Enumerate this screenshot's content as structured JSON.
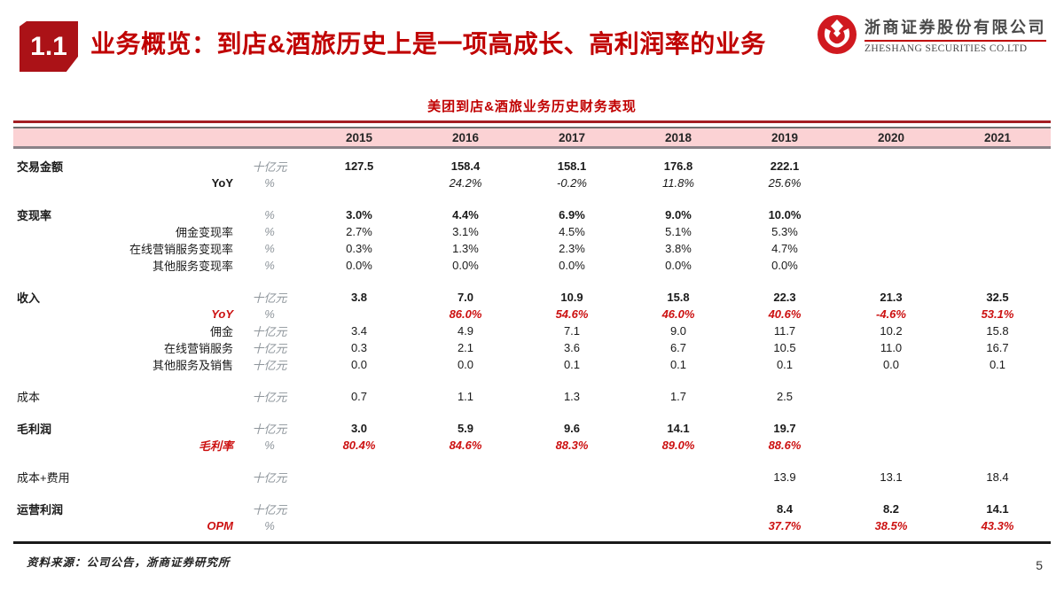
{
  "header": {
    "section_number": "1.1",
    "title": "业务概览：到店&酒旅历史上是一项高成长、高利润率的业务",
    "logo": {
      "company_cn": "浙商证券股份有限公司",
      "company_en": "ZHESHANG SECURITIES CO.LTD",
      "icon": "zheshang-knot-icon"
    }
  },
  "table": {
    "title": "美团到店&酒旅业务历史财务表现",
    "years": [
      "2015",
      "2016",
      "2017",
      "2018",
      "2019",
      "2020",
      "2021"
    ],
    "rows": [
      {
        "label": "交易金额",
        "label_class": "main",
        "unit": "十亿元",
        "value_class": "v-bold",
        "values": [
          "127.5",
          "158.4",
          "158.1",
          "176.8",
          "222.1",
          "",
          ""
        ]
      },
      {
        "label": "YoY",
        "label_class": "sub-bold",
        "unit": "%",
        "value_class": "v-italic",
        "values": [
          "",
          "24.2%",
          "-0.2%",
          "11.8%",
          "25.6%",
          "",
          ""
        ]
      },
      {
        "type": "spacer"
      },
      {
        "label": "变现率",
        "label_class": "main",
        "unit": "%",
        "value_class": "v-bold",
        "values": [
          "3.0%",
          "4.4%",
          "6.9%",
          "9.0%",
          "10.0%",
          "",
          ""
        ]
      },
      {
        "label": "佣金变现率",
        "label_class": "sub",
        "unit": "%",
        "value_class": "",
        "values": [
          "2.7%",
          "3.1%",
          "4.5%",
          "5.1%",
          "5.3%",
          "",
          ""
        ]
      },
      {
        "label": "在线营销服务变现率",
        "label_class": "sub",
        "unit": "%",
        "value_class": "",
        "values": [
          "0.3%",
          "1.3%",
          "2.3%",
          "3.8%",
          "4.7%",
          "",
          ""
        ]
      },
      {
        "label": "其他服务变现率",
        "label_class": "sub",
        "unit": "%",
        "value_class": "",
        "values": [
          "0.0%",
          "0.0%",
          "0.0%",
          "0.0%",
          "0.0%",
          "",
          ""
        ]
      },
      {
        "type": "spacer"
      },
      {
        "label": "收入",
        "label_class": "main",
        "unit": "十亿元",
        "value_class": "v-bold",
        "values": [
          "3.8",
          "7.0",
          "10.9",
          "15.8",
          "22.3",
          "21.3",
          "32.5"
        ]
      },
      {
        "label": "YoY",
        "label_class": "sub-red",
        "unit": "%",
        "value_class": "v-red",
        "values": [
          "",
          "86.0%",
          "54.6%",
          "46.0%",
          "40.6%",
          "-4.6%",
          "53.1%"
        ]
      },
      {
        "label": "佣金",
        "label_class": "sub",
        "unit": "十亿元",
        "value_class": "",
        "values": [
          "3.4",
          "4.9",
          "7.1",
          "9.0",
          "11.7",
          "10.2",
          "15.8"
        ]
      },
      {
        "label": "在线营销服务",
        "label_class": "sub",
        "unit": "十亿元",
        "value_class": "",
        "values": [
          "0.3",
          "2.1",
          "3.6",
          "6.7",
          "10.5",
          "11.0",
          "16.7"
        ]
      },
      {
        "label": "其他服务及销售",
        "label_class": "sub",
        "unit": "十亿元",
        "value_class": "",
        "values": [
          "0.0",
          "0.0",
          "0.1",
          "0.1",
          "0.1",
          "0.0",
          "0.1"
        ]
      },
      {
        "type": "spacer"
      },
      {
        "label": "成本",
        "label_class": "plain",
        "unit": "十亿元",
        "value_class": "",
        "values": [
          "0.7",
          "1.1",
          "1.3",
          "1.7",
          "2.5",
          "",
          ""
        ]
      },
      {
        "type": "spacer"
      },
      {
        "label": "毛利润",
        "label_class": "main",
        "unit": "十亿元",
        "value_class": "v-bold",
        "values": [
          "3.0",
          "5.9",
          "9.6",
          "14.1",
          "19.7",
          "",
          ""
        ]
      },
      {
        "label": "毛利率",
        "label_class": "sub-red",
        "unit": "%",
        "value_class": "v-red",
        "values": [
          "80.4%",
          "84.6%",
          "88.3%",
          "89.0%",
          "88.6%",
          "",
          ""
        ]
      },
      {
        "type": "spacer"
      },
      {
        "label": "成本+费用",
        "label_class": "plain",
        "unit": "十亿元",
        "value_class": "",
        "values": [
          "",
          "",
          "",
          "",
          "13.9",
          "13.1",
          "18.4"
        ]
      },
      {
        "type": "spacer"
      },
      {
        "label": "运营利润",
        "label_class": "main",
        "unit": "十亿元",
        "value_class": "v-bold",
        "values": [
          "",
          "",
          "",
          "",
          "8.4",
          "8.2",
          "14.1"
        ]
      },
      {
        "label": "OPM",
        "label_class": "sub-red",
        "unit": "%",
        "value_class": "v-red",
        "values": [
          "",
          "",
          "",
          "",
          "37.7%",
          "38.5%",
          "43.3%"
        ]
      }
    ]
  },
  "footer": {
    "source": "资料来源：公司公告，浙商证券研究所",
    "page_number": "5"
  },
  "colors": {
    "accent_red": "#c00000",
    "badge_red": "#ab1217",
    "value_red": "#cc1111",
    "band_pink": "#fbd2d4"
  }
}
